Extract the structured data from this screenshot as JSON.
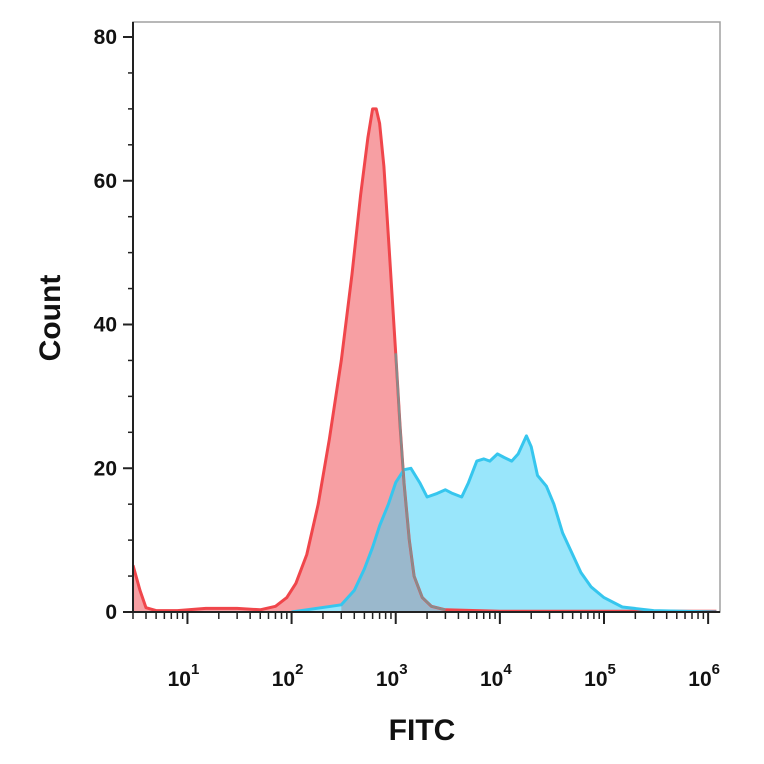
{
  "chart_data": {
    "type": "area",
    "title": "",
    "xlabel": "FITC",
    "ylabel": "Count",
    "xscale": "log",
    "xlim": [
      3,
      1300000
    ],
    "ylim": [
      0,
      80
    ],
    "grid": false,
    "legend": "none",
    "x_ticks": [
      {
        "base": "10",
        "exp": "1",
        "value": 10
      },
      {
        "base": "10",
        "exp": "2",
        "value": 100
      },
      {
        "base": "10",
        "exp": "3",
        "value": 1000
      },
      {
        "base": "10",
        "exp": "4",
        "value": 10000
      },
      {
        "base": "10",
        "exp": "5",
        "value": 100000
      },
      {
        "base": "10",
        "exp": "6",
        "value": 1000000
      }
    ],
    "y_ticks": [
      {
        "label": "0",
        "value": 0
      },
      {
        "label": "20",
        "value": 20
      },
      {
        "label": "40",
        "value": 40
      },
      {
        "label": "60",
        "value": 60
      },
      {
        "label": "80",
        "value": 80
      }
    ],
    "series": [
      {
        "color": "#f0464b",
        "fill": "#f79fa3",
        "points": [
          [
            3,
            6.5
          ],
          [
            3.5,
            3
          ],
          [
            4,
            0.6
          ],
          [
            5,
            0.2
          ],
          [
            8,
            0.2
          ],
          [
            15,
            0.5
          ],
          [
            30,
            0.5
          ],
          [
            50,
            0.3
          ],
          [
            70,
            0.8
          ],
          [
            90,
            2
          ],
          [
            110,
            4
          ],
          [
            140,
            8
          ],
          [
            180,
            15
          ],
          [
            230,
            24
          ],
          [
            300,
            35
          ],
          [
            380,
            47
          ],
          [
            460,
            58
          ],
          [
            540,
            66
          ],
          [
            600,
            70
          ],
          [
            650,
            70
          ],
          [
            700,
            68
          ],
          [
            770,
            62
          ],
          [
            870,
            50
          ],
          [
            1000,
            36
          ],
          [
            1100,
            26
          ],
          [
            1200,
            18
          ],
          [
            1350,
            10
          ],
          [
            1500,
            5
          ],
          [
            1800,
            2
          ],
          [
            2200,
            0.8
          ],
          [
            3000,
            0.3
          ],
          [
            10000,
            0.1
          ],
          [
            100000,
            0.1
          ],
          [
            1200000,
            0.1
          ]
        ]
      },
      {
        "color": "#36c6ee",
        "fill": "#99e6fb",
        "points": [
          [
            100,
            0
          ],
          [
            300,
            1
          ],
          [
            400,
            3
          ],
          [
            500,
            6
          ],
          [
            600,
            9
          ],
          [
            700,
            12
          ],
          [
            850,
            15
          ],
          [
            1000,
            18
          ],
          [
            1200,
            19.8
          ],
          [
            1400,
            20
          ],
          [
            1700,
            18
          ],
          [
            2000,
            16
          ],
          [
            2500,
            16.5
          ],
          [
            3000,
            17
          ],
          [
            3500,
            16.5
          ],
          [
            4300,
            16
          ],
          [
            5000,
            18
          ],
          [
            6000,
            21
          ],
          [
            7000,
            21.3
          ],
          [
            8000,
            21
          ],
          [
            9500,
            22
          ],
          [
            11000,
            21.5
          ],
          [
            13000,
            21
          ],
          [
            15000,
            22
          ],
          [
            18000,
            24.5
          ],
          [
            20000,
            23
          ],
          [
            23000,
            19
          ],
          [
            28000,
            17.5
          ],
          [
            33000,
            15
          ],
          [
            40000,
            11
          ],
          [
            50000,
            8
          ],
          [
            60000,
            5.5
          ],
          [
            75000,
            3.5
          ],
          [
            100000,
            2
          ],
          [
            150000,
            0.7
          ],
          [
            300000,
            0.2
          ],
          [
            1200000,
            0
          ]
        ]
      }
    ],
    "overlap_color": "#9ab8cc"
  }
}
